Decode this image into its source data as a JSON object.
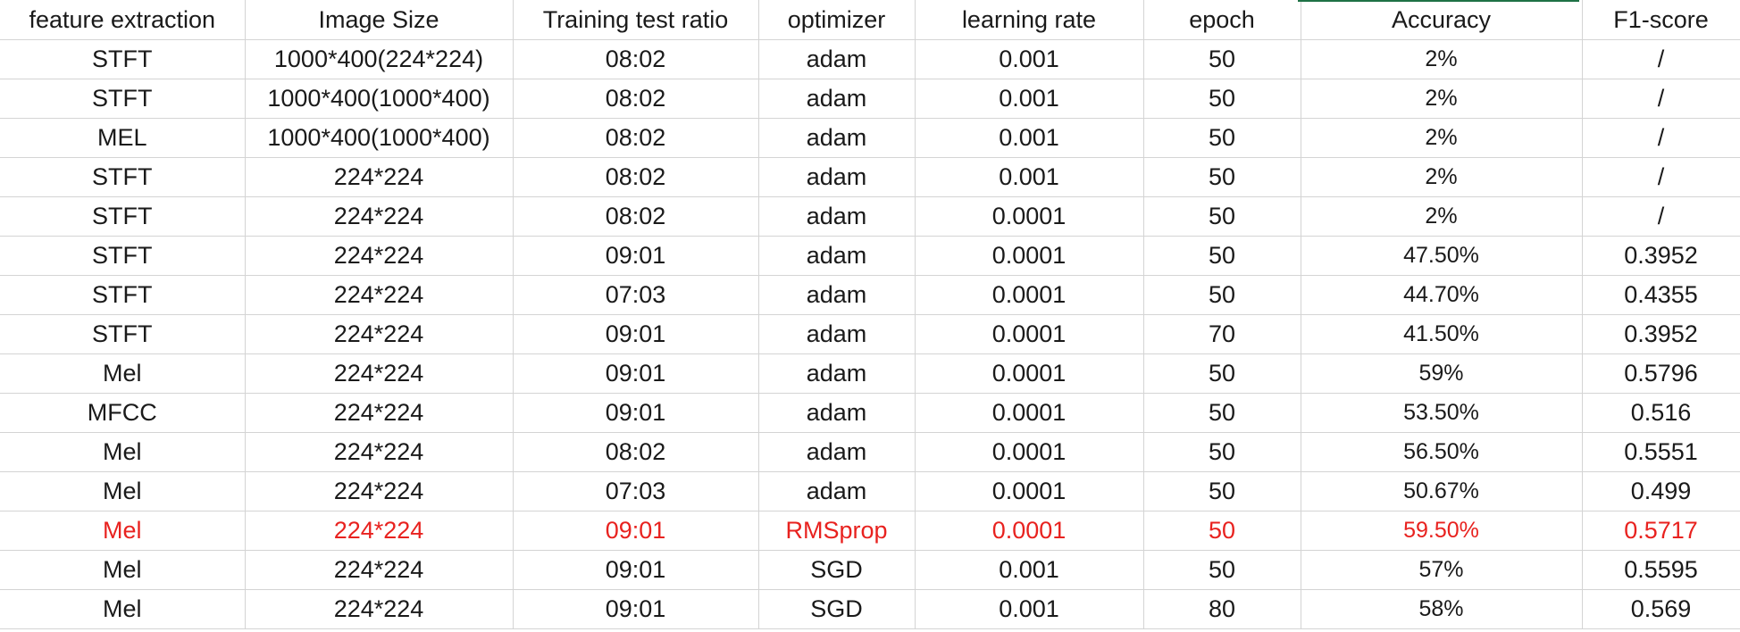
{
  "headers": [
    "feature extraction",
    "Image Size",
    "Training test ratio",
    "optimizer",
    "learning rate",
    "epoch",
    "Accuracy",
    "F1-score"
  ],
  "rows": [
    [
      "STFT",
      "1000*400(224*224)",
      "08:02",
      "adam",
      "0.001",
      "50",
      "2%",
      "/"
    ],
    [
      "STFT",
      "1000*400(1000*400)",
      "08:02",
      "adam",
      "0.001",
      "50",
      "2%",
      "/"
    ],
    [
      "MEL",
      "1000*400(1000*400)",
      "08:02",
      "adam",
      "0.001",
      "50",
      "2%",
      "/"
    ],
    [
      "STFT",
      "224*224",
      "08:02",
      "adam",
      "0.001",
      "50",
      "2%",
      "/"
    ],
    [
      "STFT",
      "224*224",
      "08:02",
      "adam",
      "0.0001",
      "50",
      "2%",
      "/"
    ],
    [
      "STFT",
      "224*224",
      "09:01",
      "adam",
      "0.0001",
      "50",
      "47.50%",
      "0.3952"
    ],
    [
      "STFT",
      "224*224",
      "07:03",
      "adam",
      "0.0001",
      "50",
      "44.70%",
      "0.4355"
    ],
    [
      "STFT",
      "224*224",
      "09:01",
      "adam",
      "0.0001",
      "70",
      "41.50%",
      "0.3952"
    ],
    [
      "Mel",
      "224*224",
      "09:01",
      "adam",
      "0.0001",
      "50",
      "59%",
      "0.5796"
    ],
    [
      "MFCC",
      "224*224",
      "09:01",
      "adam",
      "0.0001",
      "50",
      "53.50%",
      "0.516"
    ],
    [
      "Mel",
      "224*224",
      "08:02",
      "adam",
      "0.0001",
      "50",
      "56.50%",
      "0.5551"
    ],
    [
      "Mel",
      "224*224",
      "07:03",
      "adam",
      "0.0001",
      "50",
      "50.67%",
      "0.499"
    ],
    [
      "Mel",
      "224*224",
      "09:01",
      "RMSprop",
      "0.0001",
      "50",
      "59.50%",
      "0.5717"
    ],
    [
      "Mel",
      "224*224",
      "09:01",
      "SGD",
      "0.001",
      "50",
      "57%",
      "0.5595"
    ],
    [
      "Mel",
      "224*224",
      "09:01",
      "SGD",
      "0.001",
      "80",
      "58%",
      "0.569"
    ]
  ],
  "highlighted_row": 12,
  "colors": {
    "text": "#1a1a1a",
    "highlight_text": "#e8221f",
    "gridline": "#d4d4d4",
    "selection_border": "#1e7145"
  }
}
